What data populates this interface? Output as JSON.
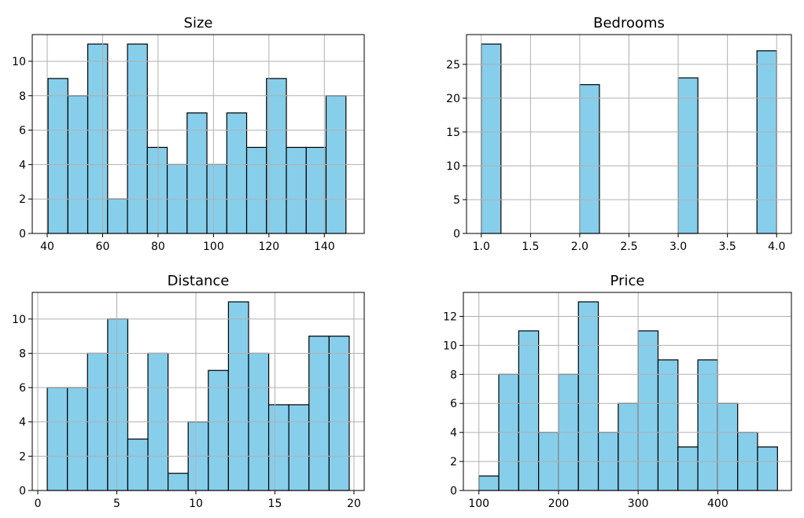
{
  "colors": {
    "bar_fill": "#87ceeb",
    "bar_edge": "#000000",
    "grid": "#b0b0b0"
  },
  "chart_data": [
    {
      "type": "bar",
      "id": "size",
      "title": "Size",
      "xlabel": "",
      "ylabel": "",
      "xlim": [
        34.6,
        154.4
      ],
      "ylim": [
        0,
        11.55
      ],
      "grid": true,
      "xticks": [
        40,
        60,
        80,
        100,
        120,
        140
      ],
      "xtick_labels": [
        "40",
        "60",
        "80",
        "100",
        "120",
        "140"
      ],
      "yticks": [
        0,
        2,
        4,
        6,
        8,
        10
      ],
      "ytick_labels": [
        "0",
        "2",
        "4",
        "6",
        "8",
        "10"
      ],
      "bin_edges": [
        40.3,
        47.47,
        54.63,
        61.8,
        68.97,
        76.13,
        83.3,
        90.47,
        97.63,
        104.8,
        111.97,
        119.13,
        126.3,
        133.47,
        140.63,
        147.8
      ],
      "values": [
        9,
        8,
        11,
        2,
        11,
        5,
        4,
        7,
        4,
        7,
        5,
        9,
        5,
        5,
        8
      ]
    },
    {
      "type": "bar",
      "id": "bedrooms",
      "title": "Bedrooms",
      "xlabel": "",
      "ylabel": "",
      "xlim": [
        0.85,
        4.15
      ],
      "ylim": [
        0,
        29.4
      ],
      "grid": true,
      "xticks": [
        1.0,
        1.5,
        2.0,
        2.5,
        3.0,
        3.5,
        4.0
      ],
      "xtick_labels": [
        "1.0",
        "1.5",
        "2.0",
        "2.5",
        "3.0",
        "3.5",
        "4.0"
      ],
      "yticks": [
        0,
        5,
        10,
        15,
        20,
        25
      ],
      "ytick_labels": [
        "0",
        "5",
        "10",
        "15",
        "20",
        "25"
      ],
      "bin_edges": [
        1.0,
        1.2,
        1.4,
        1.6,
        1.8,
        2.0,
        2.2,
        2.4,
        2.6,
        2.8,
        3.0,
        3.2,
        3.4,
        3.6,
        3.8,
        4.0
      ],
      "values": [
        28,
        0,
        0,
        0,
        0,
        22,
        0,
        0,
        0,
        0,
        23,
        0,
        0,
        0,
        27
      ]
    },
    {
      "type": "bar",
      "id": "distance",
      "title": "Distance",
      "xlabel": "",
      "ylabel": "",
      "xlim": [
        -0.35,
        20.65
      ],
      "ylim": [
        0,
        11.55
      ],
      "grid": true,
      "xticks": [
        0,
        5,
        10,
        15,
        20
      ],
      "xtick_labels": [
        "0",
        "5",
        "10",
        "15",
        "20"
      ],
      "yticks": [
        0,
        2,
        4,
        6,
        8,
        10
      ],
      "ytick_labels": [
        "0",
        "2",
        "4",
        "6",
        "8",
        "10"
      ],
      "bin_edges": [
        0.6,
        1.873,
        3.147,
        4.42,
        5.693,
        6.967,
        8.24,
        9.513,
        10.787,
        12.06,
        13.333,
        14.607,
        15.88,
        17.153,
        18.427,
        19.7
      ],
      "values": [
        6,
        6,
        8,
        10,
        3,
        8,
        1,
        4,
        7,
        11,
        8,
        5,
        5,
        9,
        9
      ]
    },
    {
      "type": "bar",
      "id": "price",
      "title": "Price",
      "xlabel": "",
      "ylabel": "",
      "xlim": [
        80.5,
        492.5
      ],
      "ylim": [
        0,
        13.65
      ],
      "grid": true,
      "xticks": [
        100,
        200,
        300,
        400
      ],
      "xtick_labels": [
        "100",
        "200",
        "300",
        "400"
      ],
      "yticks": [
        0,
        2,
        4,
        6,
        8,
        10,
        12
      ],
      "ytick_labels": [
        "0",
        "2",
        "4",
        "6",
        "8",
        "10",
        "12"
      ],
      "bin_edges": [
        100,
        125,
        150,
        175,
        200,
        225,
        250,
        275,
        300,
        325,
        350,
        375,
        400,
        425,
        450,
        475
      ],
      "values": [
        1,
        8,
        11,
        4,
        8,
        13,
        4,
        6,
        11,
        9,
        3,
        9,
        6,
        4,
        3
      ]
    }
  ]
}
